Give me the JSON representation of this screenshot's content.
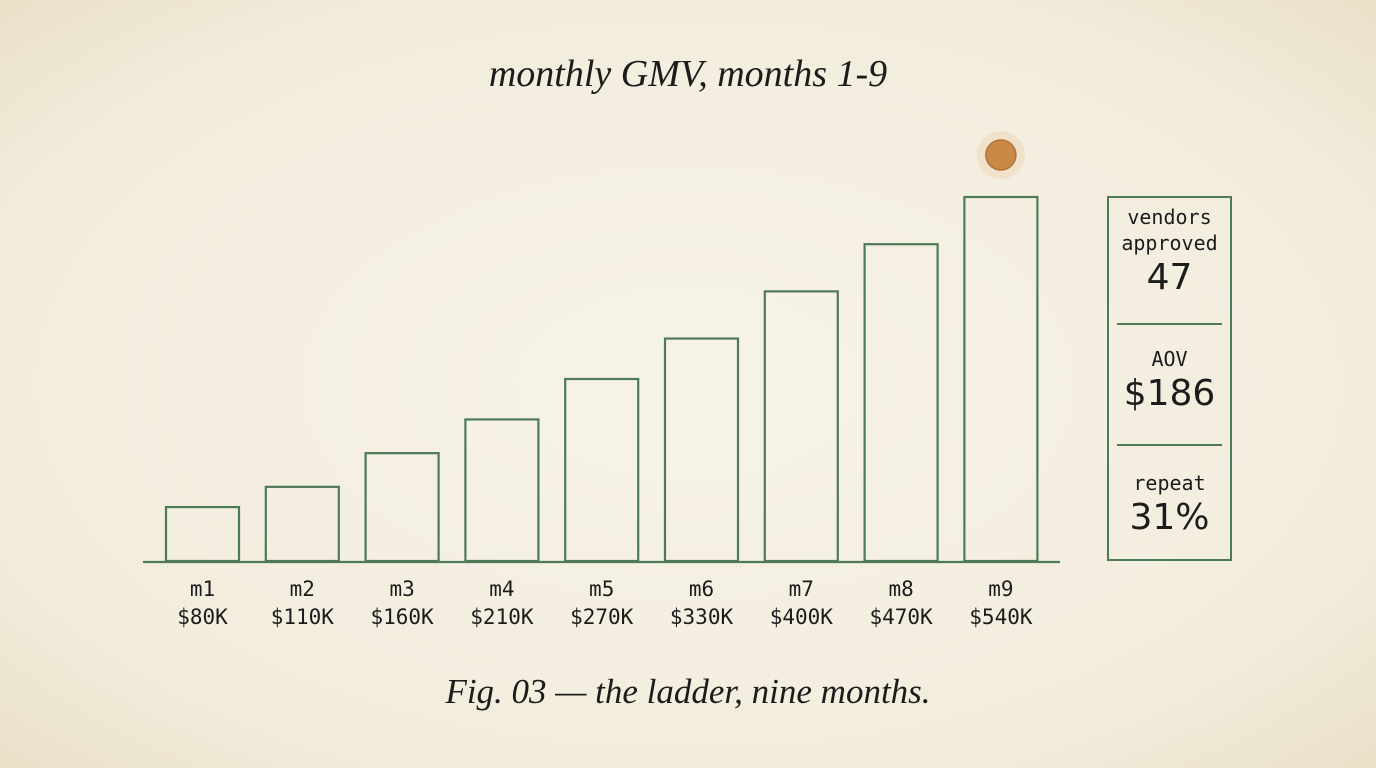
{
  "colors": {
    "bar_stroke": "#4f7a58",
    "background": "#f4efe2",
    "marker": "#c98a45"
  },
  "chart_data": {
    "type": "bar",
    "title": "monthly GMV, months 1-9",
    "caption": "Fig. 03 — the ladder, nine months.",
    "categories": [
      "m1",
      "m2",
      "m3",
      "m4",
      "m5",
      "m6",
      "m7",
      "m8",
      "m9"
    ],
    "values": [
      80,
      110,
      160,
      210,
      270,
      330,
      400,
      470,
      540
    ],
    "value_labels": [
      "$80K",
      "$110K",
      "$160K",
      "$210K",
      "$270K",
      "$330K",
      "$400K",
      "$470K",
      "$540K"
    ],
    "unit": "$K",
    "ylim": [
      0,
      540
    ],
    "grid": false,
    "highlight": "m9"
  },
  "stats": [
    {
      "label": "vendors approved",
      "value": "47"
    },
    {
      "label": "AOV",
      "value": "$186"
    },
    {
      "label": "repeat",
      "value": "31%"
    }
  ]
}
